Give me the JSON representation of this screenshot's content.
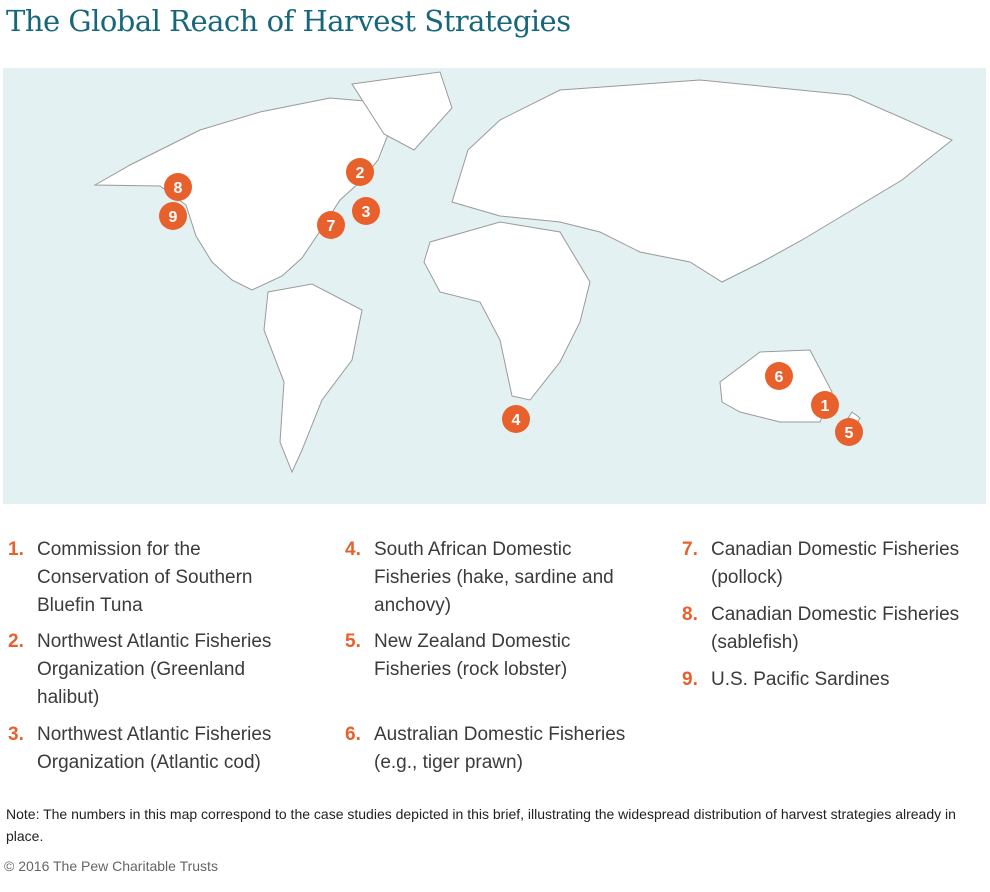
{
  "title": "The Global Reach of Harvest Strategies",
  "colors": {
    "ocean": "#e3f1f2",
    "land": "#ffffff",
    "marker": "#e8602c",
    "title": "#17677a"
  },
  "markers": [
    {
      "label": "1",
      "region": "Tasman Sea / southeastern Australia"
    },
    {
      "label": "2",
      "region": "Labrador Sea / Greenland"
    },
    {
      "label": "3",
      "region": "Newfoundland Grand Banks"
    },
    {
      "label": "4",
      "region": "South Africa"
    },
    {
      "label": "5",
      "region": "New Zealand"
    },
    {
      "label": "6",
      "region": "Australia"
    },
    {
      "label": "7",
      "region": "Atlantic Canada"
    },
    {
      "label": "8",
      "region": "British Columbia"
    },
    {
      "label": "9",
      "region": "U.S. Pacific coast"
    }
  ],
  "legend": [
    {
      "num": "1.",
      "text": "Commission for the Conservation of Southern Bluefin Tuna"
    },
    {
      "num": "2.",
      "text": "Northwest Atlantic Fisheries Organization (Greenland halibut)"
    },
    {
      "num": "3.",
      "text": "Northwest Atlantic Fisheries Organization (Atlantic cod)"
    },
    {
      "num": "4.",
      "text": "South African Domestic Fisheries (hake, sardine and anchovy)"
    },
    {
      "num": "5.",
      "text": "New Zealand Domestic Fisheries (rock lobster)"
    },
    {
      "num": "6.",
      "text": "Australian Domestic Fisheries (e.g., tiger prawn)"
    },
    {
      "num": "7.",
      "text": "Canadian Domestic Fisheries (pollock)"
    },
    {
      "num": "8.",
      "text": "Canadian Domestic Fisheries (sablefish)"
    },
    {
      "num": "9.",
      "text": "U.S. Pacific Sardines"
    }
  ],
  "note": "Note: The numbers in this map correspond to the case studies depicted in this brief, illustrating the widespread distribution of harvest strategies already in place.",
  "copyright": "© 2016 The Pew Charitable Trusts"
}
